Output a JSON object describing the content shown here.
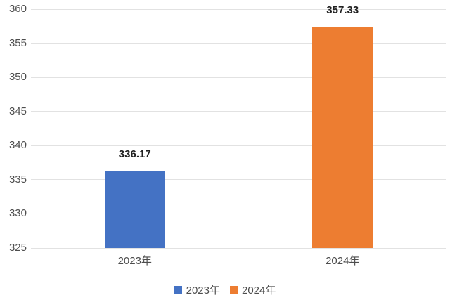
{
  "chart_data": {
    "type": "bar",
    "title": "",
    "xlabel": "",
    "ylabel": "",
    "categories": [
      "2023年",
      "2024年"
    ],
    "bars": [
      {
        "category": "2023年",
        "value": 336.17,
        "label": "336.17",
        "color": "#4472C4"
      },
      {
        "category": "2024年",
        "value": 357.33,
        "label": "357.33",
        "color": "#ED7D31"
      }
    ],
    "ylim": [
      325,
      360
    ],
    "ytick_step": 5,
    "yticks": [
      325,
      330,
      335,
      340,
      345,
      350,
      355,
      360
    ],
    "grid": true,
    "gridline_color": "#e2e2e2",
    "legend": {
      "position": "bottom",
      "items": [
        {
          "label": "2023年",
          "color": "#4472C4"
        },
        {
          "label": "2024年",
          "color": "#ED7D31"
        }
      ]
    }
  }
}
